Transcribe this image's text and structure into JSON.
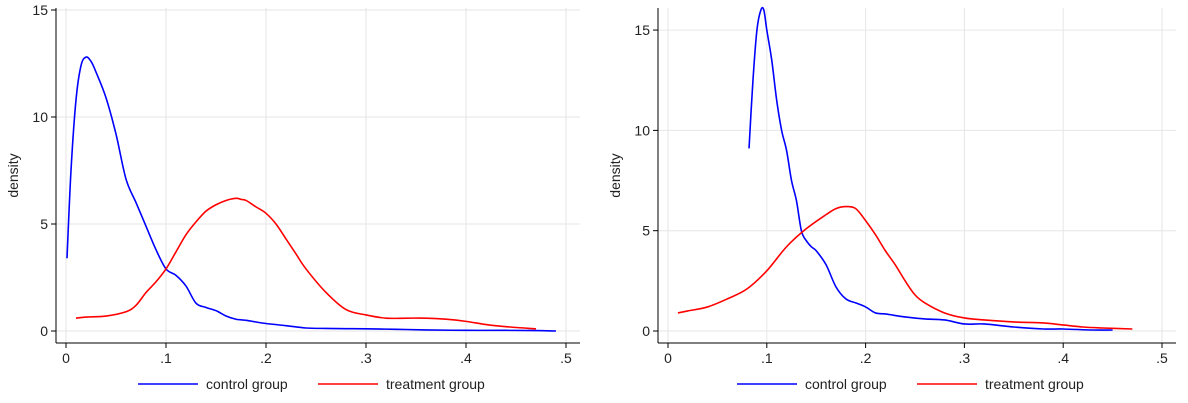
{
  "chart_data": [
    {
      "type": "line",
      "title": "",
      "xlabel": "",
      "ylabel": "density",
      "xlim": [
        0,
        0.5
      ],
      "ylim": [
        0,
        15
      ],
      "xticks": [
        0,
        0.1,
        0.2,
        0.3,
        0.4,
        0.5
      ],
      "xtick_labels": [
        "0",
        ".1",
        ".2",
        ".3",
        ".4",
        ".5"
      ],
      "yticks": [
        0,
        5,
        10,
        15
      ],
      "ytick_labels": [
        "0",
        "5",
        "10",
        "15"
      ],
      "grid": true,
      "legend_position": "bottom",
      "series": [
        {
          "name": "control group",
          "color": "#0000ff",
          "x": [
            0.001,
            0.005,
            0.01,
            0.015,
            0.02,
            0.025,
            0.03,
            0.04,
            0.05,
            0.06,
            0.07,
            0.08,
            0.09,
            0.1,
            0.11,
            0.12,
            0.13,
            0.14,
            0.15,
            0.16,
            0.17,
            0.18,
            0.19,
            0.2,
            0.22,
            0.24,
            0.26,
            0.28,
            0.3,
            0.33,
            0.36,
            0.4,
            0.44,
            0.47,
            0.49
          ],
          "y": [
            3.4,
            7.5,
            10.8,
            12.4,
            12.8,
            12.6,
            12.1,
            10.9,
            9.2,
            7.1,
            6.0,
            4.9,
            3.8,
            2.9,
            2.6,
            2.1,
            1.3,
            1.1,
            0.95,
            0.7,
            0.55,
            0.5,
            0.42,
            0.35,
            0.25,
            0.14,
            0.12,
            0.11,
            0.1,
            0.08,
            0.05,
            0.03,
            0.03,
            0.02,
            0.0
          ]
        },
        {
          "name": "treatment group",
          "color": "#ff0000",
          "x": [
            0.01,
            0.02,
            0.04,
            0.06,
            0.07,
            0.08,
            0.09,
            0.1,
            0.11,
            0.12,
            0.13,
            0.14,
            0.15,
            0.16,
            0.17,
            0.175,
            0.18,
            0.19,
            0.2,
            0.21,
            0.22,
            0.23,
            0.24,
            0.26,
            0.28,
            0.3,
            0.32,
            0.34,
            0.36,
            0.38,
            0.4,
            0.42,
            0.44,
            0.47
          ],
          "y": [
            0.6,
            0.65,
            0.7,
            0.9,
            1.2,
            1.8,
            2.3,
            2.9,
            3.7,
            4.5,
            5.1,
            5.6,
            5.9,
            6.1,
            6.2,
            6.15,
            6.1,
            5.8,
            5.5,
            5.0,
            4.3,
            3.6,
            2.9,
            1.8,
            1.0,
            0.75,
            0.6,
            0.6,
            0.6,
            0.55,
            0.45,
            0.3,
            0.2,
            0.1
          ]
        }
      ]
    },
    {
      "type": "line",
      "title": "",
      "xlabel": "",
      "ylabel": "density",
      "xlim": [
        0,
        0.5
      ],
      "ylim": [
        0,
        16
      ],
      "xticks": [
        0,
        0.1,
        0.2,
        0.3,
        0.4,
        0.5
      ],
      "xtick_labels": [
        "0",
        ".1",
        ".2",
        ".3",
        ".4",
        ".5"
      ],
      "yticks": [
        0,
        5,
        10,
        15
      ],
      "ytick_labels": [
        "0",
        "5",
        "10",
        "15"
      ],
      "grid": true,
      "legend_position": "bottom",
      "series": [
        {
          "name": "control group",
          "color": "#0000ff",
          "x": [
            0.082,
            0.086,
            0.09,
            0.094,
            0.097,
            0.1,
            0.105,
            0.11,
            0.115,
            0.12,
            0.125,
            0.13,
            0.135,
            0.14,
            0.145,
            0.15,
            0.16,
            0.17,
            0.18,
            0.19,
            0.2,
            0.21,
            0.22,
            0.24,
            0.26,
            0.28,
            0.3,
            0.32,
            0.35,
            0.38,
            0.4,
            0.43,
            0.45
          ],
          "y": [
            9.1,
            12.5,
            15.0,
            16.0,
            16.0,
            15.0,
            13.5,
            11.5,
            10.0,
            9.0,
            7.5,
            6.5,
            5.0,
            4.5,
            4.2,
            4.0,
            3.3,
            2.2,
            1.6,
            1.4,
            1.2,
            0.9,
            0.85,
            0.7,
            0.6,
            0.55,
            0.35,
            0.35,
            0.2,
            0.1,
            0.1,
            0.05,
            0.05
          ]
        },
        {
          "name": "treatment group",
          "color": "#ff0000",
          "x": [
            0.01,
            0.02,
            0.04,
            0.06,
            0.08,
            0.1,
            0.12,
            0.14,
            0.16,
            0.17,
            0.18,
            0.19,
            0.2,
            0.21,
            0.22,
            0.23,
            0.24,
            0.25,
            0.26,
            0.28,
            0.3,
            0.32,
            0.35,
            0.38,
            0.4,
            0.42,
            0.44,
            0.47
          ],
          "y": [
            0.9,
            1.0,
            1.2,
            1.6,
            2.1,
            3.0,
            4.2,
            5.1,
            5.8,
            6.1,
            6.2,
            6.1,
            5.5,
            4.8,
            4.0,
            3.3,
            2.5,
            1.8,
            1.4,
            0.9,
            0.65,
            0.55,
            0.45,
            0.4,
            0.3,
            0.2,
            0.15,
            0.1
          ]
        }
      ]
    }
  ]
}
